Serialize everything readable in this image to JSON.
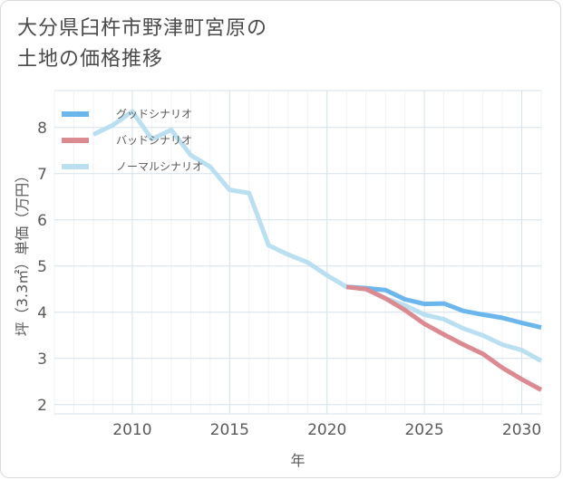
{
  "title_line1": "大分県臼杵市野津町宮原の",
  "title_line2": "土地の価格推移",
  "chart_data": {
    "type": "line",
    "xlabel": "年",
    "ylabel": "坪（3.3㎡）単価（万円）",
    "xlim": [
      2006,
      2031
    ],
    "ylim": [
      1.8,
      8.8
    ],
    "x_ticks": [
      2010,
      2015,
      2020,
      2025,
      2030
    ],
    "y_ticks": [
      2,
      3,
      4,
      5,
      6,
      7,
      8
    ],
    "grid": true,
    "legend_position": "top-left",
    "series": [
      {
        "name": "グッドシナリオ",
        "color": "#6cb6ee",
        "x": [
          2021,
          2022,
          2023,
          2024,
          2025,
          2026,
          2027,
          2028,
          2029,
          2030,
          2031
        ],
        "values": [
          4.55,
          4.52,
          4.48,
          4.28,
          4.18,
          4.19,
          4.03,
          3.95,
          3.88,
          3.77,
          3.67
        ]
      },
      {
        "name": "バッドシナリオ",
        "color": "#dc8a92",
        "x": [
          2021,
          2022,
          2023,
          2024,
          2025,
          2026,
          2027,
          2028,
          2029,
          2030,
          2031
        ],
        "values": [
          4.55,
          4.5,
          4.3,
          4.05,
          3.75,
          3.52,
          3.3,
          3.1,
          2.8,
          2.55,
          2.32
        ]
      },
      {
        "name": "ノーマルシナリオ",
        "color": "#b9dff0",
        "x": [
          2008,
          2009,
          2010,
          2011,
          2012,
          2013,
          2014,
          2015,
          2016,
          2017,
          2018,
          2019,
          2020,
          2021,
          2022,
          2023,
          2024,
          2025,
          2026,
          2027,
          2028,
          2029,
          2030,
          2031
        ],
        "values": [
          7.85,
          8.05,
          8.35,
          7.75,
          7.95,
          7.4,
          7.15,
          6.65,
          6.58,
          5.45,
          5.25,
          5.08,
          4.8,
          4.55,
          4.52,
          4.3,
          4.15,
          3.95,
          3.85,
          3.65,
          3.5,
          3.3,
          3.18,
          2.95
        ]
      }
    ]
  }
}
